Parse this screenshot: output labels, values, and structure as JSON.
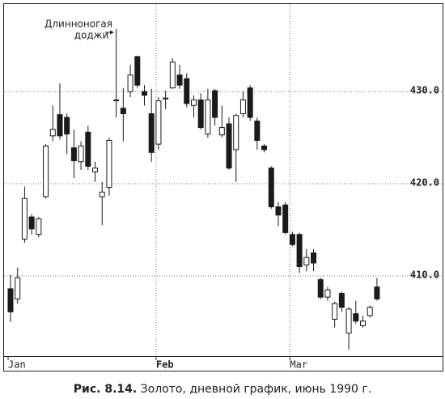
{
  "chart_data": {
    "type": "candlestick",
    "annotation": [
      "Длинноногая",
      "доджи"
    ],
    "caption_label": "Рис. 8.14.",
    "caption_text": "Золото, дневной график, июнь 1990 г.",
    "categories": [
      "Jan",
      null,
      null,
      null,
      null,
      null,
      null,
      null,
      null,
      null,
      null,
      null,
      null,
      null,
      null,
      null,
      null,
      null,
      null,
      null,
      null,
      "Feb",
      null,
      null,
      null,
      null,
      null,
      null,
      null,
      null,
      null,
      null,
      null,
      null,
      null,
      null,
      null,
      null,
      null,
      null,
      "Mar",
      null,
      null,
      null,
      null,
      null,
      null,
      null,
      null,
      null,
      null,
      null,
      null
    ],
    "open": [
      408.6,
      407.5,
      414.0,
      416.4,
      414.5,
      418.6,
      425.2,
      427.5,
      427.2,
      423.9,
      422.4,
      425.6,
      421.3,
      418.6,
      419.6,
      429.0,
      428.2,
      430.0,
      433.8,
      430.0,
      427.6,
      424.3,
      429.2,
      430.4,
      431.8,
      431.4,
      428.5,
      429.1,
      425.4,
      430.1,
      425.3,
      426.5,
      423.7,
      427.6,
      430.4,
      426.8,
      424.1,
      421.7,
      417.5,
      417.7,
      414.5,
      414.5,
      411.2,
      412.5,
      409.6,
      407.7,
      405.3,
      408.1,
      403.8,
      405.9,
      404.6,
      405.7,
      408.8
    ],
    "high": [
      410.1,
      410.9,
      419.7,
      416.7,
      416.4,
      424.3,
      428.5,
      430.9,
      427.6,
      425.9,
      424.6,
      426.3,
      422.4,
      420.2,
      425.0,
      436.8,
      430.4,
      432.9,
      433.9,
      430.7,
      430.3,
      429.4,
      430.1,
      433.6,
      432.9,
      432.0,
      429.6,
      429.8,
      430.3,
      430.3,
      428.5,
      427.2,
      427.6,
      430.0,
      430.7,
      427.2,
      424.3,
      421.9,
      418.0,
      418.0,
      414.8,
      414.7,
      412.9,
      412.9,
      409.8,
      408.8,
      407.2,
      408.3,
      406.6,
      407.3,
      405.7,
      406.8,
      409.8
    ],
    "low": [
      405.0,
      407.0,
      413.6,
      414.5,
      414.2,
      418.4,
      424.6,
      424.8,
      423.2,
      420.6,
      421.5,
      421.5,
      420.2,
      415.5,
      418.7,
      427.2,
      424.6,
      429.4,
      430.4,
      428.5,
      422.4,
      423.7,
      428.1,
      430.3,
      430.3,
      428.3,
      427.2,
      425.9,
      425.0,
      426.3,
      425.0,
      421.5,
      420.2,
      427.2,
      426.8,
      423.7,
      423.4,
      417.3,
      415.4,
      414.5,
      413.2,
      410.3,
      410.5,
      410.5,
      407.5,
      407.3,
      404.4,
      406.1,
      402.0,
      404.8,
      404.4,
      405.5,
      407.3
    ],
    "close": [
      406.1,
      409.8,
      418.4,
      415.1,
      416.2,
      424.1,
      425.9,
      425.2,
      425.4,
      422.5,
      424.1,
      421.9,
      421.7,
      419.1,
      424.7,
      429.1,
      427.6,
      431.8,
      430.7,
      429.6,
      423.4,
      429.0,
      429.3,
      433.2,
      430.7,
      428.7,
      429.1,
      426.1,
      429.1,
      427.2,
      426.1,
      421.7,
      427.4,
      429.1,
      427.2,
      424.7,
      423.7,
      417.5,
      416.6,
      414.7,
      413.4,
      411.0,
      412.0,
      411.4,
      407.7,
      408.5,
      407.0,
      406.6,
      406.4,
      405.1,
      405.1,
      406.6,
      407.5
    ],
    "ylim": [
      401.3,
      439.5
    ],
    "yticks": [
      {
        "value": 410,
        "label": "410.0"
      },
      {
        "value": 420,
        "label": "420.0"
      },
      {
        "value": 430,
        "label": "430.0"
      }
    ],
    "grid": true,
    "up_color": "#ffffff",
    "down_color": "#1a1a1a"
  }
}
